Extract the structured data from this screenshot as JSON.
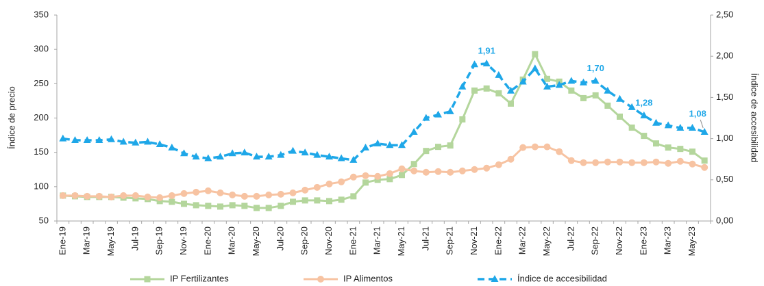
{
  "chart_data": {
    "type": "line",
    "y_label": "Índice de precio",
    "y2_label": "Índice de accesibilidad",
    "categories": [
      "Ene-19",
      null,
      "Mar-19",
      null,
      "May-19",
      null,
      "Jul-19",
      null,
      "Sep-19",
      null,
      "Nov-19",
      null,
      "Ene-20",
      null,
      "Mar-20",
      null,
      "May-20",
      null,
      "Jul-20",
      null,
      "Sep-20",
      null,
      "Nov-20",
      null,
      "Ene-21",
      null,
      "Mar-21",
      null,
      "May-21",
      null,
      "Jul-21",
      null,
      "Sep-21",
      null,
      "Nov-21",
      null,
      "Ene-22",
      null,
      "Mar-22",
      null,
      "May-22",
      null,
      "Jul-22",
      null,
      "Sep-22",
      null,
      "Nov-22",
      null,
      "Ene-23",
      null,
      "Mar-23",
      null,
      "May-23",
      null
    ],
    "ylim": [
      50,
      350
    ],
    "yticks": [
      50,
      100,
      150,
      200,
      250,
      300,
      350
    ],
    "y2lim": [
      0,
      2.5
    ],
    "y2ticks": [
      {
        "value": 0,
        "label": "0,00"
      },
      {
        "value": 0.5,
        "label": "0,50"
      },
      {
        "value": 1,
        "label": "1,00"
      },
      {
        "value": 1.5,
        "label": "1,50"
      },
      {
        "value": 2,
        "label": "2,00"
      },
      {
        "value": 2.5,
        "label": "2,50"
      }
    ],
    "legend": "bottom",
    "series": [
      {
        "name": "IP Fertilizantes",
        "color": "#b4d69c",
        "marker": "square",
        "dashed": false,
        "axis": "y",
        "values": [
          87,
          86,
          85,
          85,
          85,
          84,
          83,
          82,
          79,
          78,
          75,
          73,
          72,
          71,
          73,
          72,
          69,
          69,
          72,
          78,
          80,
          80,
          79,
          81,
          86,
          106,
          110,
          111,
          117,
          133,
          152,
          158,
          160,
          198,
          240,
          243,
          236,
          221,
          256,
          293,
          257,
          253,
          240,
          229,
          233,
          218,
          202,
          186,
          174,
          163,
          157,
          155,
          151,
          138
        ]
      },
      {
        "name": "IP Alimentos",
        "color": "#f7c3a2",
        "marker": "circle",
        "dashed": false,
        "axis": "y",
        "values": [
          87,
          87,
          86,
          86,
          85,
          87,
          87,
          85,
          84,
          87,
          90,
          92,
          94,
          91,
          88,
          86,
          86,
          88,
          89,
          91,
          95,
          99,
          104,
          107,
          114,
          116,
          115,
          119,
          126,
          123,
          121,
          122,
          121,
          123,
          125,
          127,
          132,
          140,
          157,
          158,
          158,
          151,
          138,
          135,
          135,
          136,
          136,
          135,
          135,
          136,
          134,
          137,
          133,
          128
        ]
      },
      {
        "name": "Índice de accesibilidad",
        "color": "#1ea7e8",
        "marker": "triangle",
        "dashed": true,
        "axis": "y2",
        "values": [
          1.0,
          0.98,
          0.98,
          0.98,
          0.99,
          0.96,
          0.95,
          0.96,
          0.93,
          0.89,
          0.82,
          0.78,
          0.76,
          0.78,
          0.82,
          0.83,
          0.78,
          0.78,
          0.8,
          0.85,
          0.83,
          0.8,
          0.78,
          0.76,
          0.74,
          0.89,
          0.94,
          0.92,
          0.92,
          1.08,
          1.25,
          1.29,
          1.33,
          1.63,
          1.9,
          1.91,
          1.77,
          1.58,
          1.69,
          1.85,
          1.63,
          1.65,
          1.7,
          1.68,
          1.7,
          1.58,
          1.48,
          1.38,
          1.28,
          1.19,
          1.16,
          1.13,
          1.13,
          1.08
        ],
        "value_labels": [
          null,
          null,
          null,
          null,
          null,
          null,
          null,
          null,
          null,
          null,
          null,
          null,
          null,
          null,
          null,
          null,
          null,
          null,
          null,
          null,
          null,
          null,
          null,
          null,
          null,
          null,
          null,
          null,
          null,
          null,
          null,
          null,
          null,
          null,
          null,
          "1,91",
          null,
          null,
          null,
          null,
          null,
          null,
          null,
          null,
          "1,70",
          null,
          null,
          null,
          "1,28",
          null,
          null,
          null,
          null,
          "1,08"
        ]
      }
    ]
  }
}
